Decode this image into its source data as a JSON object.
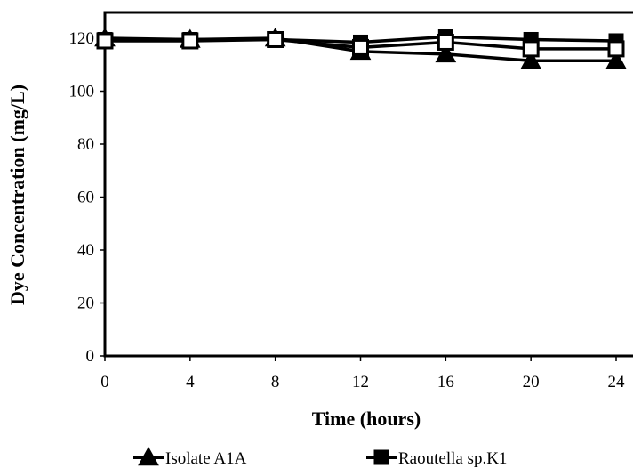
{
  "chart_data": {
    "type": "line",
    "title": "",
    "xlabel": "Time (hours)",
    "ylabel": "Dye  Concentration (mg/L)",
    "xlim": [
      0,
      24
    ],
    "ylim": [
      0,
      120
    ],
    "x_ticks": [
      0,
      4,
      8,
      12,
      16,
      20,
      24
    ],
    "y_ticks": [
      0,
      20,
      40,
      60,
      80,
      100,
      120
    ],
    "grid": false,
    "legend_position": "bottom",
    "x": [
      0,
      4,
      8,
      12,
      16,
      20,
      24
    ],
    "series": [
      {
        "name": "Isolate A1A",
        "marker": "triangle",
        "values": [
          120,
          119.5,
          120,
          115,
          114,
          111.5,
          111.5
        ]
      },
      {
        "name": "Raoutella sp.K1",
        "marker": "square",
        "values": [
          119.5,
          119.5,
          119.5,
          118.5,
          120.5,
          119.5,
          119
        ]
      },
      {
        "name": "",
        "marker": "open-square",
        "values": [
          119,
          119,
          119.5,
          116.5,
          118.5,
          116,
          116
        ],
        "in_legend": false
      }
    ],
    "colors": {
      "line": "#000000",
      "open_fill": "#ffffff",
      "background": "#ffffff"
    }
  }
}
